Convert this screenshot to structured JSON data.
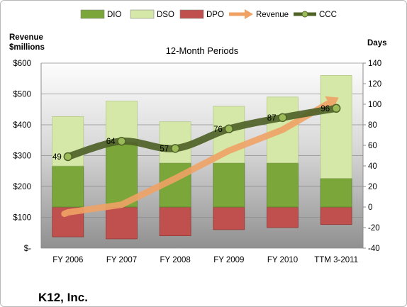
{
  "chart_data": {
    "type": "bar",
    "title": "12-Month Periods",
    "company": "K12, Inc.",
    "left_axis_label": "Revenue\n$millions",
    "right_axis_label": "Days",
    "categories": [
      "FY 2006",
      "FY 2007",
      "FY 2008",
      "FY 2009",
      "FY 2010",
      "TTM 3-2011"
    ],
    "left_axis": {
      "min": 0,
      "max": 600,
      "step": 100,
      "tick_labels": [
        "$-",
        "$100",
        "$200",
        "$300",
        "$400",
        "$500",
        "$600"
      ]
    },
    "right_axis": {
      "min": -40,
      "max": 140,
      "step": 20,
      "tick_labels": [
        "-40",
        "-20",
        "0",
        "20",
        "40",
        "60",
        "80",
        "100",
        "120",
        "140"
      ]
    },
    "bar_series_axis": "right",
    "series": [
      {
        "name": "DIO",
        "type": "bar",
        "color": "#7aa63a",
        "values": [
          40,
          63,
          43,
          43,
          43,
          28
        ]
      },
      {
        "name": "DSO",
        "type": "bar",
        "color": "#d5e8a8",
        "values": [
          48,
          40,
          40,
          55,
          64,
          100
        ]
      },
      {
        "name": "DPO",
        "type": "bar",
        "color": "#c0504d",
        "values": [
          -29,
          -31,
          -28,
          -22,
          -20,
          -17
        ]
      },
      {
        "name": "Revenue",
        "type": "arrow",
        "axis": "left",
        "color": "#f0a265",
        "values": [
          116,
          141,
          226,
          316,
          384,
          484
        ]
      },
      {
        "name": "CCC",
        "type": "line",
        "axis": "right",
        "color": "#4f6228",
        "values": [
          49,
          64,
          57,
          76,
          87,
          96
        ],
        "data_labels": [
          "49",
          "64",
          "57",
          "76",
          "87",
          "96"
        ]
      }
    ],
    "legend_position": "top",
    "legend": [
      "DIO",
      "DSO",
      "DPO",
      "Revenue",
      "CCC"
    ]
  }
}
